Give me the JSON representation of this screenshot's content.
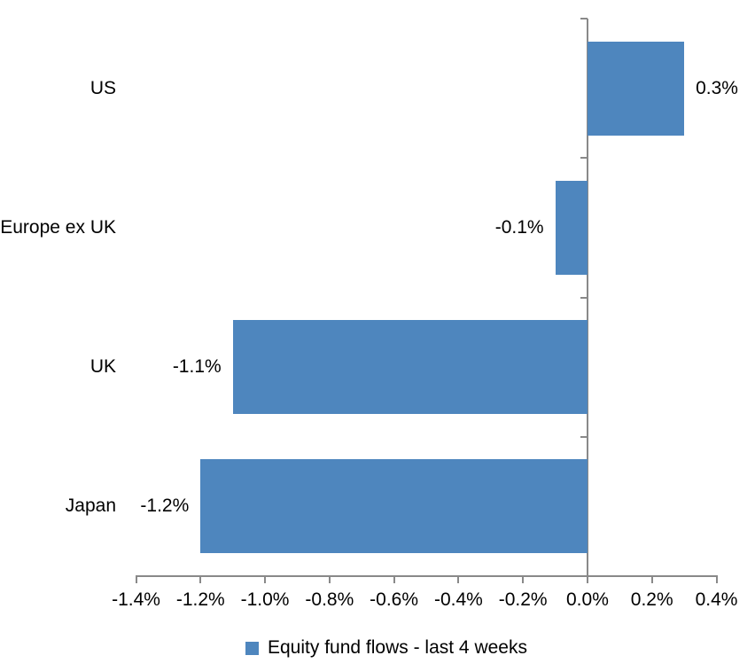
{
  "chart_data": {
    "type": "bar",
    "orientation": "horizontal",
    "title": "",
    "categories": [
      "US",
      "Europe ex UK",
      "UK",
      "Japan"
    ],
    "values": [
      0.3,
      -0.1,
      -1.1,
      -1.2
    ],
    "data_labels": [
      "0.3%",
      "-0.1%",
      "-1.1%",
      "-1.2%"
    ],
    "legend": {
      "label": "Equity fund flows - last 4 weeks",
      "position": "bottom"
    },
    "x_axis": {
      "min": -1.4,
      "max": 0.4,
      "step": 0.2,
      "tick_labels": [
        "-1.4%",
        "-1.2%",
        "-1.0%",
        "-0.8%",
        "-0.6%",
        "-0.4%",
        "-0.2%",
        "0.0%",
        "0.2%",
        "0.4%"
      ]
    },
    "grid": false,
    "colors": {
      "bar": "#4E86BE",
      "axis": "#898989",
      "text": "#000000",
      "background": "#FFFFFF"
    }
  }
}
